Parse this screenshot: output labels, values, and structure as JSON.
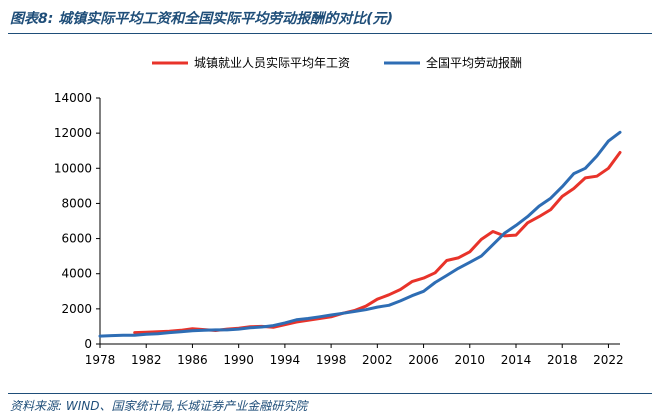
{
  "header": {
    "title": "图表8:  城镇实际平均工资和全国实际平均劳动报酬的对比(元)"
  },
  "footer": {
    "source": "资料来源: WIND、国家统计局,长城证券产业金融研究院"
  },
  "colors": {
    "series1": "#e8332a",
    "series2": "#2e6db4",
    "accent": "#1f4e79"
  },
  "chart_data": {
    "type": "line",
    "ylim": [
      0,
      14000
    ],
    "xlim": [
      1978,
      2023
    ],
    "x_ticks": [
      1978,
      1982,
      1986,
      1990,
      1994,
      1998,
      2002,
      2006,
      2010,
      2014,
      2018,
      2022
    ],
    "y_ticks": [
      0,
      2000,
      4000,
      6000,
      8000,
      10000,
      12000,
      14000
    ],
    "legend_position": "top",
    "series": [
      {
        "name": "城镇就业人员实际平均年工资",
        "x": [
          1981,
          1982,
          1983,
          1984,
          1985,
          1986,
          1987,
          1988,
          1989,
          1990,
          1991,
          1992,
          1993,
          1994,
          1995,
          1996,
          1997,
          1998,
          1999,
          2000,
          2001,
          2002,
          2003,
          2004,
          2005,
          2006,
          2007,
          2008,
          2009,
          2010,
          2011,
          2012,
          2013,
          2014,
          2015,
          2016,
          2017,
          2018,
          2019,
          2020,
          2021,
          2022,
          2023
        ],
        "values": [
          650,
          670,
          700,
          720,
          780,
          870,
          820,
          770,
          850,
          900,
          980,
          1000,
          950,
          1100,
          1250,
          1350,
          1450,
          1550,
          1750,
          1900,
          2150,
          2550,
          2800,
          3100,
          3550,
          3750,
          4050,
          4750,
          4900,
          5250,
          5950,
          6400,
          6150,
          6200,
          6900,
          7250,
          7650,
          8400,
          8850,
          9450,
          9550,
          10000,
          10900
        ]
      },
      {
        "name": "全国平均劳动报酬",
        "x": [
          1978,
          1979,
          1980,
          1981,
          1982,
          1983,
          1984,
          1985,
          1986,
          1987,
          1988,
          1989,
          1990,
          1991,
          1992,
          1993,
          1994,
          1995,
          1996,
          1997,
          1998,
          1999,
          2000,
          2001,
          2002,
          2003,
          2004,
          2005,
          2006,
          2007,
          2008,
          2009,
          2010,
          2011,
          2012,
          2013,
          2014,
          2015,
          2016,
          2017,
          2018,
          2019,
          2020,
          2021,
          2022,
          2023
        ],
        "values": [
          450,
          480,
          500,
          500,
          550,
          580,
          650,
          700,
          750,
          780,
          800,
          800,
          850,
          920,
          970,
          1050,
          1200,
          1380,
          1450,
          1550,
          1650,
          1750,
          1850,
          1950,
          2100,
          2200,
          2450,
          2750,
          3000,
          3500,
          3900,
          4300,
          4650,
          5000,
          5650,
          6300,
          6750,
          7250,
          7850,
          8300,
          8950,
          9700,
          10000,
          10700,
          11550,
          12050
        ]
      }
    ]
  }
}
